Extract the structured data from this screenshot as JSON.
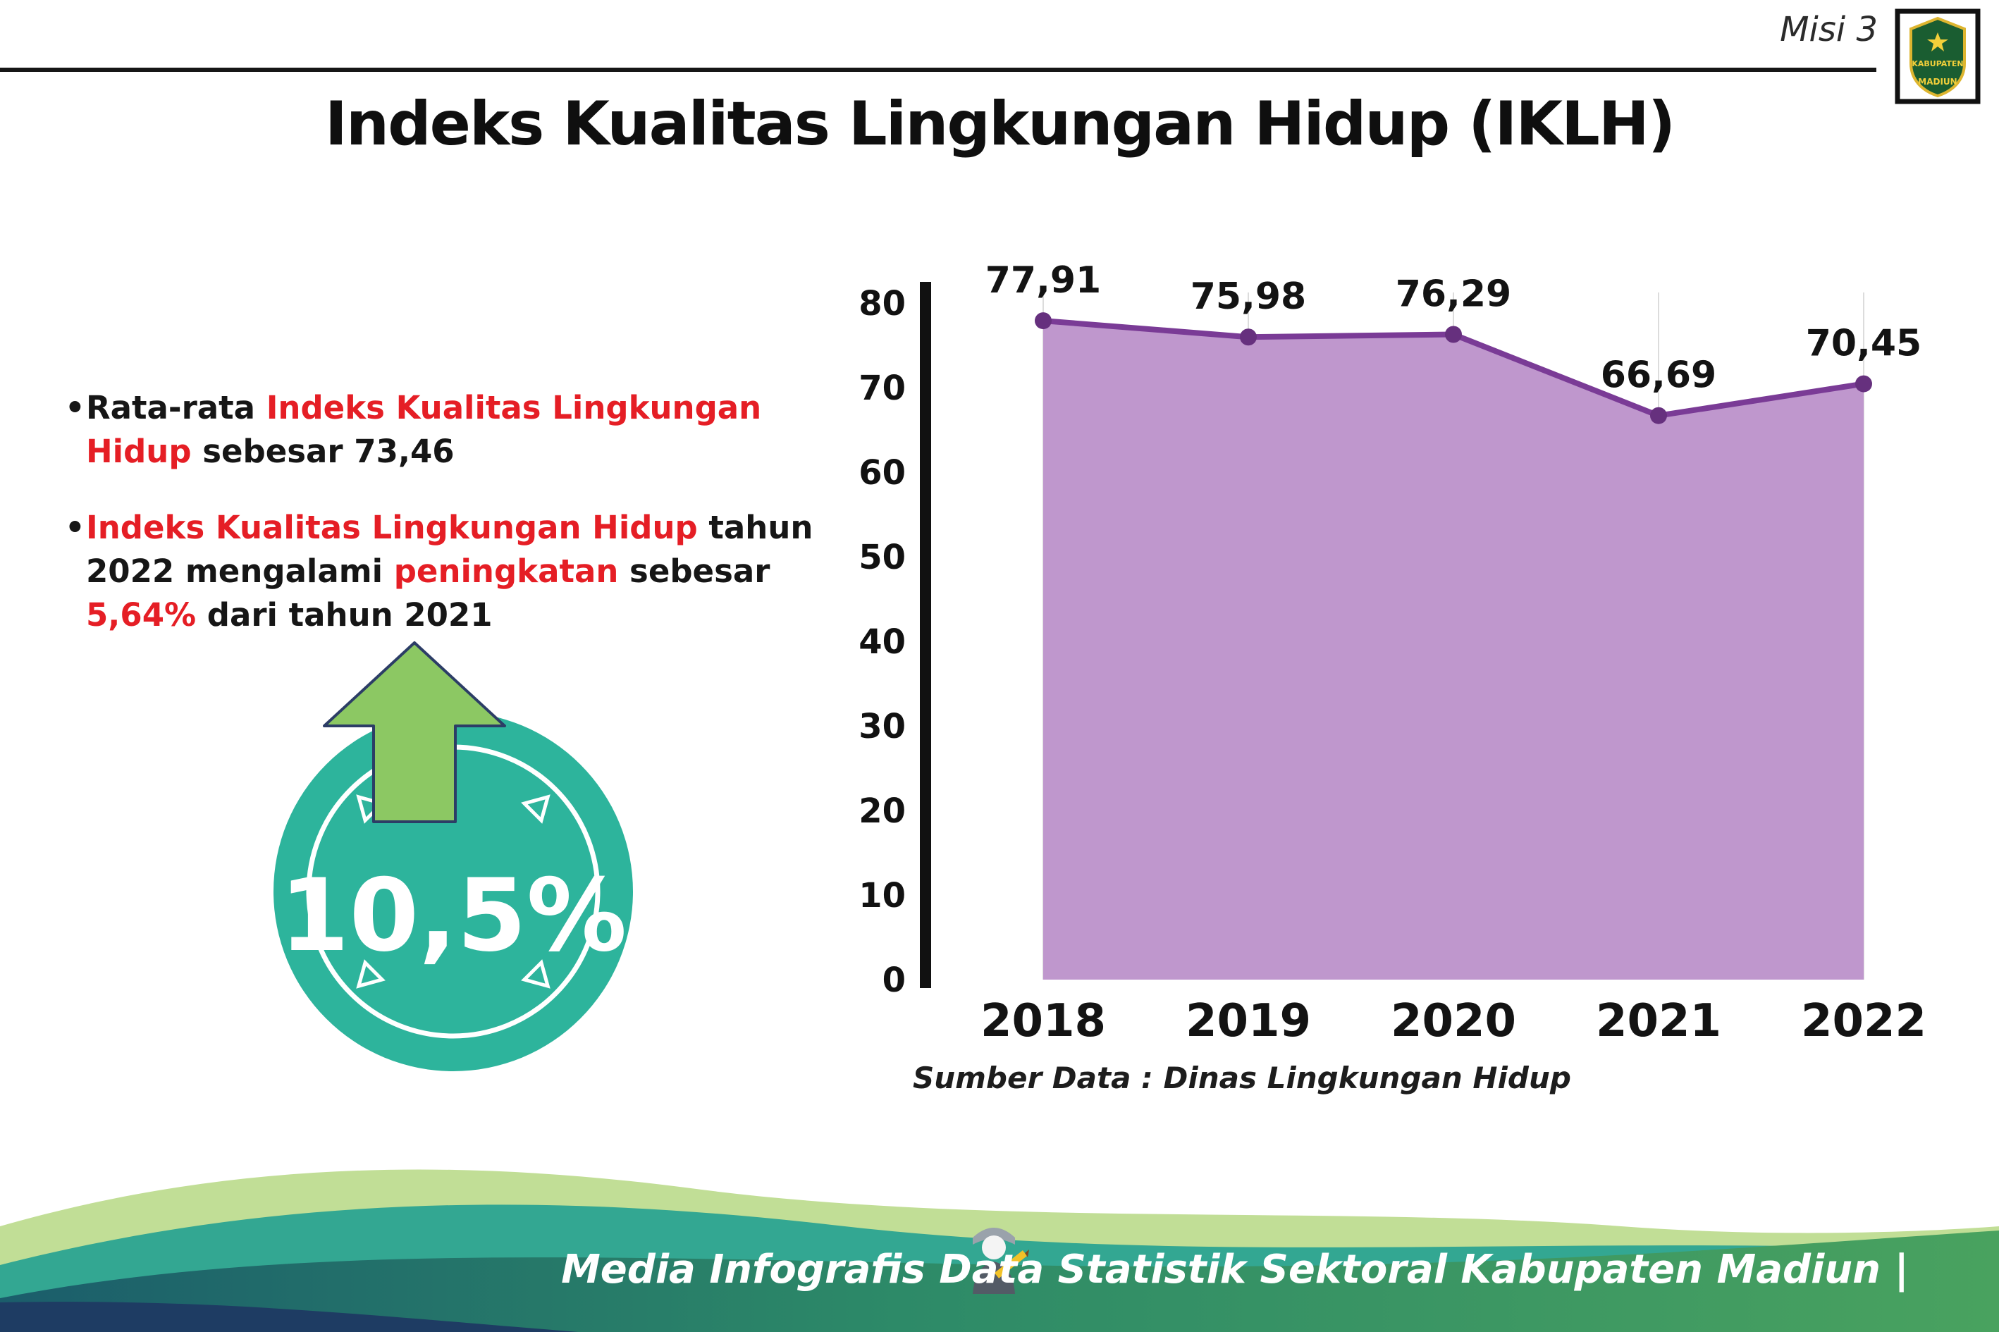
{
  "header": {
    "misi_label": "Misi 3",
    "title": "Indeks Kualitas Lingkungan Hidup (IKLH)",
    "logo": {
      "line1": "KABUPATEN",
      "line2": "MADIUN"
    }
  },
  "bullets": [
    {
      "segments": [
        {
          "text": "Rata-rata ",
          "color": "black"
        },
        {
          "text": "Indeks Kualitas Lingkungan Hidup",
          "color": "red"
        },
        {
          "text": " sebesar 73,46",
          "color": "black"
        }
      ]
    },
    {
      "segments": [
        {
          "text": "Indeks Kualitas Lingkungan Hidup",
          "color": "red"
        },
        {
          "text": " tahun 2022 mengalami ",
          "color": "black"
        },
        {
          "text": "peningkatan",
          "color": "red"
        },
        {
          "text": " sebesar ",
          "color": "black"
        },
        {
          "text": "5,64%",
          "color": "red"
        },
        {
          "text": " dari tahun 2021",
          "color": "black"
        }
      ]
    }
  ],
  "badge": {
    "value": "10,5%",
    "circle_color": "#2db49c",
    "arrow_color": "#8cc863"
  },
  "chart_data": {
    "type": "area",
    "categories": [
      "2018",
      "2019",
      "2020",
      "2021",
      "2022"
    ],
    "values": [
      77.91,
      75.98,
      76.29,
      66.69,
      70.45
    ],
    "value_labels": [
      "77,91",
      "75,98",
      "76,29",
      "66,69",
      "70,45"
    ],
    "ylim": [
      0,
      80
    ],
    "ytick_step": 10,
    "line_color": "#7a3b96",
    "point_color": "#66307e",
    "fill_color": "#bf97cd",
    "grid": "light-vertical",
    "legend": "none",
    "source": "Sumber Data : Dinas Lingkungan Hidup"
  },
  "footer": {
    "credit": "Media Infografis Data Statistik Sektoral Kabupaten Madiun |"
  }
}
